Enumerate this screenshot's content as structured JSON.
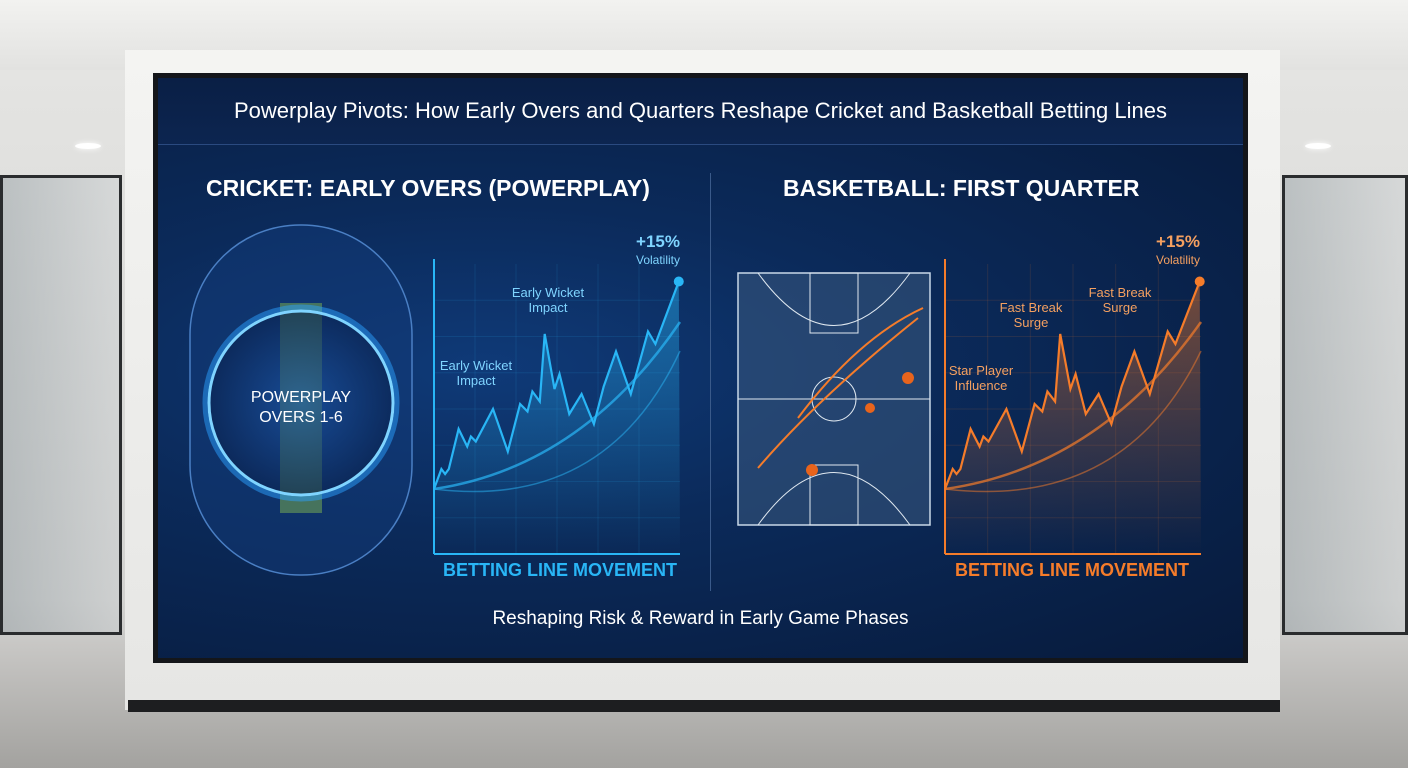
{
  "title": "Powerplay Pivots: How Early Overs and Quarters Reshape Cricket and Basketball Betting Lines",
  "cricket": {
    "heading": "CRICKET: EARLY OVERS (POWERPLAY)",
    "badge_line1": "POWERPLAY",
    "badge_line2": "OVERS 1-6",
    "annotations": [
      "Early Wicket Impact",
      "Early Wicket Impact"
    ],
    "peak_value": "+15%",
    "peak_label": "Volatility",
    "footer": "BETTING LINE MOVEMENT",
    "color": "#29b6f6"
  },
  "basketball": {
    "heading": "BASKETBALL: FIRST QUARTER",
    "annotations": [
      "Star Player Influence",
      "Fast Break Surge",
      "Fast Break Surge"
    ],
    "peak_value": "+15%",
    "peak_label": "Volatility",
    "footer": "BETTING LINE MOVEMENT",
    "color": "#f57c2a"
  },
  "subtitle": "Reshaping Risk & Reward in Early Game Phases"
}
